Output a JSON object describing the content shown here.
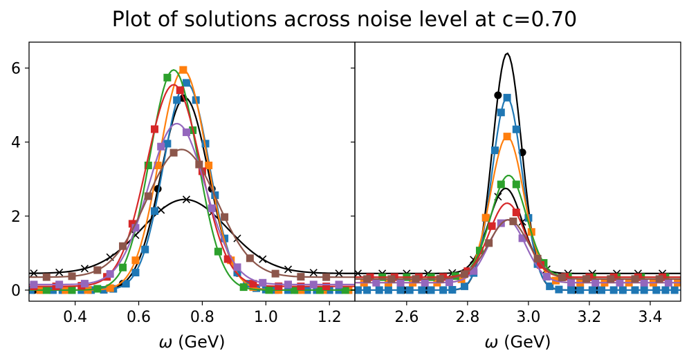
{
  "chart_data": {
    "type": "line",
    "title": "Plot of solutions across noise level at c=0.70",
    "panels": [
      {
        "name": "left",
        "xlabel": "ω (GeV)",
        "ylabel": "",
        "xlim": [
          0.255,
          1.28
        ],
        "ylim": [
          -0.3,
          6.7
        ],
        "xticks": [
          0.4,
          0.6,
          0.8,
          1.0,
          1.2
        ],
        "xtick_labels": [
          "0.4",
          "0.6",
          "0.8",
          "1.0",
          "1.2"
        ],
        "yticks": [
          0,
          2,
          4,
          6
        ],
        "ytick_labels": [
          "0",
          "2",
          "4",
          "6"
        ],
        "series": [
          {
            "name": "input (x)",
            "color": "#000000",
            "marker": "x",
            "peak": 2.0,
            "center": 0.745,
            "width": 0.135,
            "baseline": 0.45,
            "x_marks": [
              0.27,
              0.35,
              0.43,
              0.51,
              0.59,
              0.67,
              0.75,
              0.83,
              0.91,
              0.99,
              1.07,
              1.15,
              1.23
            ]
          },
          {
            "name": "true (circle)",
            "color": "#000000",
            "marker": "o",
            "peak": 5.2,
            "center": 0.745,
            "width": 0.075,
            "baseline": 0.0,
            "x_marks": [
              0.27,
              0.36,
              0.45,
              0.55,
              0.66,
              0.74,
              0.83,
              0.91
            ]
          },
          {
            "name": "blue",
            "color": "#1f77b4",
            "marker": "s",
            "peak": 5.6,
            "center": 0.75,
            "width": 0.072,
            "baseline": 0.0,
            "x_marks": [
              0.26,
              0.29,
              0.33,
              0.36,
              0.39,
              0.42,
              0.45,
              0.49,
              0.52,
              0.56,
              0.59,
              0.62,
              0.65,
              0.69,
              0.72,
              0.75,
              0.78,
              0.81,
              0.84,
              0.87,
              0.91,
              0.94,
              0.97,
              1.0,
              1.03,
              1.07,
              1.1,
              1.13,
              1.16,
              1.2,
              1.23,
              1.26
            ]
          },
          {
            "name": "orange",
            "color": "#ff7f0e",
            "marker": "s",
            "peak": 5.95,
            "center": 0.74,
            "width": 0.075,
            "baseline": 0.0,
            "x_marks": [
              0.29,
              0.37,
              0.44,
              0.51,
              0.59,
              0.66,
              0.74,
              0.82,
              0.89,
              0.96,
              1.04,
              1.11,
              1.18,
              1.26
            ]
          },
          {
            "name": "green",
            "color": "#2ca02c",
            "marker": "s",
            "peak": 5.95,
            "center": 0.71,
            "width": 0.075,
            "baseline": 0.0,
            "x_marks": [
              0.31,
              0.39,
              0.47,
              0.55,
              0.63,
              0.69,
              0.77,
              0.85,
              0.93,
              1.01,
              1.09,
              1.17,
              1.25
            ]
          },
          {
            "name": "red",
            "color": "#d62728",
            "marker": "s",
            "peak": 5.45,
            "center": 0.71,
            "width": 0.085,
            "baseline": 0.1,
            "x_marks": [
              0.27,
              0.34,
              0.42,
              0.5,
              0.58,
              0.65,
              0.73,
              0.8,
              0.88,
              0.96,
              1.04,
              1.11,
              1.19
            ]
          },
          {
            "name": "purple",
            "color": "#9467bd",
            "marker": "s",
            "peak": 4.35,
            "center": 0.72,
            "width": 0.09,
            "baseline": 0.15,
            "x_marks": [
              0.27,
              0.35,
              0.43,
              0.51,
              0.59,
              0.67,
              0.75,
              0.83,
              0.91,
              0.99,
              1.07,
              1.15,
              1.23
            ]
          },
          {
            "name": "brown",
            "color": "#8c564b",
            "marker": "s",
            "peak": 3.45,
            "center": 0.735,
            "width": 0.11,
            "baseline": 0.35,
            "x_marks": [
              0.31,
              0.39,
              0.47,
              0.55,
              0.63,
              0.71,
              0.79,
              0.87,
              0.95,
              1.03,
              1.11,
              1.19
            ]
          }
        ]
      },
      {
        "name": "right",
        "xlabel": "ω (GeV)",
        "ylabel": "",
        "xlim": [
          2.43,
          3.5
        ],
        "ylim": [
          -0.3,
          6.7
        ],
        "xticks": [
          2.6,
          2.8,
          3.0,
          3.2,
          3.4
        ],
        "xtick_labels": [
          "2.6",
          "2.8",
          "3.0",
          "3.2",
          "3.4"
        ],
        "yticks": [
          0,
          2,
          4,
          6
        ],
        "ytick_labels": [],
        "series": [
          {
            "name": "input (x)",
            "color": "#000000",
            "marker": "x",
            "peak": 2.3,
            "center": 2.925,
            "width": 0.055,
            "baseline": 0.45,
            "x_marks": [
              2.44,
              2.52,
              2.6,
              2.67,
              2.75,
              2.82,
              2.9,
              2.98,
              3.06,
              3.13,
              3.21,
              3.29,
              3.36,
              3.44
            ]
          },
          {
            "name": "true (circle)",
            "color": "#000000",
            "marker": "o",
            "peak": 6.4,
            "center": 2.93,
            "width": 0.048,
            "baseline": 0.0,
            "x_marks": [
              2.59,
              2.67,
              2.75,
              2.9,
              2.98,
              3.15,
              3.23,
              3.31
            ]
          },
          {
            "name": "blue",
            "color": "#1f77b4",
            "marker": "s",
            "peak": 5.2,
            "center": 2.93,
            "width": 0.05,
            "baseline": 0.0,
            "x_marks": [
              2.44,
              2.47,
              2.51,
              2.54,
              2.58,
              2.61,
              2.65,
              2.68,
              2.72,
              2.75,
              2.79,
              2.82,
              2.86,
              2.89,
              2.91,
              2.93,
              2.96,
              3.0,
              3.03,
              3.07,
              3.1,
              3.14,
              3.17,
              3.21,
              3.24,
              3.28,
              3.31,
              3.35,
              3.38,
              3.42,
              3.45,
              3.48
            ]
          },
          {
            "name": "orange",
            "color": "#ff7f0e",
            "marker": "s",
            "peak": 3.95,
            "center": 2.93,
            "width": 0.055,
            "baseline": 0.2,
            "x_marks": [
              2.46,
              2.54,
              2.62,
              2.7,
              2.78,
              2.86,
              2.93,
              3.01,
              3.09,
              3.17,
              3.25,
              3.33,
              3.41,
              3.49
            ]
          },
          {
            "name": "green",
            "color": "#2ca02c",
            "marker": "s",
            "peak": 2.75,
            "center": 2.935,
            "width": 0.058,
            "baseline": 0.35,
            "x_marks": [
              2.52,
              2.6,
              2.68,
              2.76,
              2.84,
              2.91,
              2.96,
              3.05,
              3.13,
              3.21,
              3.29,
              3.37,
              3.45
            ]
          },
          {
            "name": "red",
            "color": "#d62728",
            "marker": "s",
            "peak": 2.0,
            "center": 2.93,
            "width": 0.058,
            "baseline": 0.35,
            "x_marks": [
              2.48,
              2.56,
              2.64,
              2.72,
              2.8,
              2.88,
              2.96,
              3.04,
              3.12,
              3.2,
              3.28,
              3.36,
              3.44
            ]
          },
          {
            "name": "purple",
            "color": "#9467bd",
            "marker": "s",
            "peak": 1.7,
            "center": 2.93,
            "width": 0.06,
            "baseline": 0.2,
            "x_marks": [
              2.5,
              2.58,
              2.66,
              2.74,
              2.82,
              2.91,
              2.98,
              3.06,
              3.14,
              3.22,
              3.3,
              3.38,
              3.46
            ]
          },
          {
            "name": "brown",
            "color": "#8c564b",
            "marker": "s",
            "peak": 1.6,
            "center": 2.935,
            "width": 0.065,
            "baseline": 0.3,
            "x_marks": [
              2.47,
              2.55,
              2.63,
              2.71,
              2.79,
              2.87,
              2.95,
              3.03,
              3.11,
              3.19,
              3.27,
              3.35,
              3.43
            ]
          }
        ]
      }
    ]
  }
}
